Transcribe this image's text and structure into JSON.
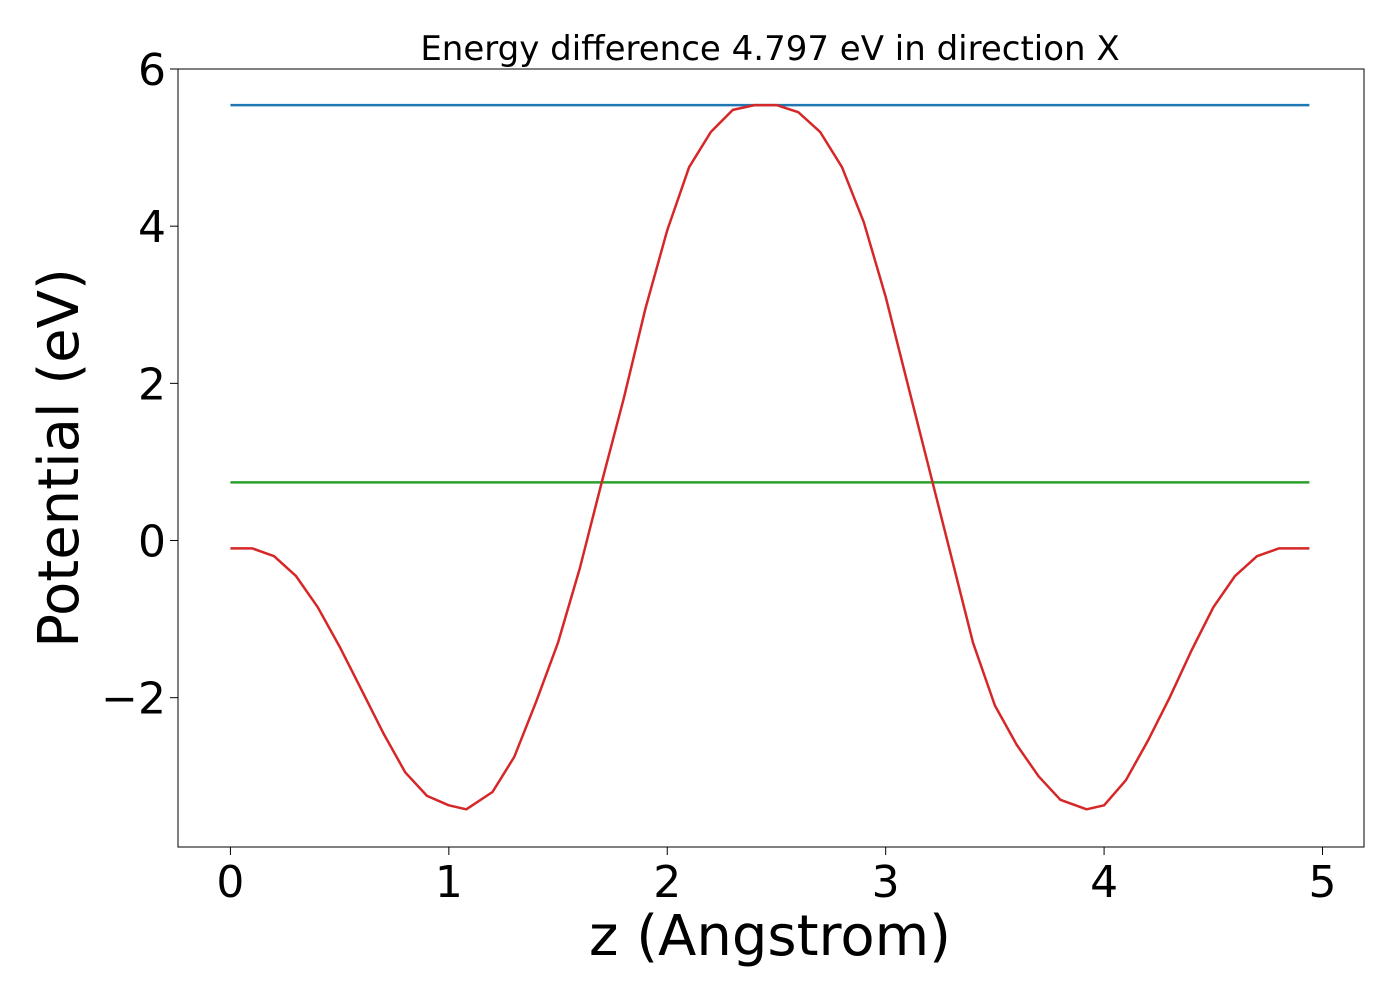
{
  "chart_data": {
    "type": "line",
    "title": "Energy difference 4.797 eV in direction X",
    "xlabel": "z (Angstrom)",
    "ylabel": "Potential (eV)",
    "xlim": [
      -0.24,
      5.19
    ],
    "ylim": [
      -3.9,
      6.0
    ],
    "x_ticks": [
      0,
      1,
      2,
      3,
      4,
      5
    ],
    "x_tick_labels": [
      "0",
      "1",
      "2",
      "3",
      "4",
      "5"
    ],
    "y_ticks": [
      -2,
      0,
      2,
      4,
      6
    ],
    "y_tick_labels": [
      "−2",
      "0",
      "2",
      "4",
      "6"
    ],
    "grid": false,
    "series": [
      {
        "color": "#1f77b4",
        "x": [
          0,
          4.94
        ],
        "y": [
          5.54,
          5.54
        ]
      },
      {
        "color": "#2ca02c",
        "x": [
          0,
          4.94
        ],
        "y": [
          0.74,
          0.74
        ]
      },
      {
        "color": "#d62728",
        "x": [
          0,
          0.1,
          0.2,
          0.3,
          0.4,
          0.5,
          0.6,
          0.7,
          0.8,
          0.9,
          1.0,
          1.08,
          1.2,
          1.3,
          1.4,
          1.5,
          1.6,
          1.7,
          1.8,
          1.9,
          2.0,
          2.1,
          2.2,
          2.3,
          2.4,
          2.5,
          2.6,
          2.7,
          2.8,
          2.9,
          3.0,
          3.1,
          3.2,
          3.3,
          3.4,
          3.5,
          3.6,
          3.7,
          3.8,
          3.92,
          4.0,
          4.1,
          4.2,
          4.3,
          4.4,
          4.5,
          4.6,
          4.7,
          4.8,
          4.9,
          4.94
        ],
        "y": [
          -0.1,
          -0.1,
          -0.2,
          -0.45,
          -0.85,
          -1.35,
          -1.9,
          -2.45,
          -2.95,
          -3.25,
          -3.37,
          -3.42,
          -3.2,
          -2.75,
          -2.05,
          -1.3,
          -0.35,
          0.74,
          1.8,
          2.95,
          3.95,
          4.75,
          5.2,
          5.48,
          5.54,
          5.54,
          5.45,
          5.2,
          4.75,
          4.05,
          3.1,
          2.0,
          0.9,
          -0.2,
          -1.3,
          -2.1,
          -2.6,
          -3.0,
          -3.3,
          -3.42,
          -3.37,
          -3.05,
          -2.55,
          -2.0,
          -1.4,
          -0.85,
          -0.45,
          -0.2,
          -0.1,
          -0.1,
          -0.1
        ]
      }
    ]
  }
}
